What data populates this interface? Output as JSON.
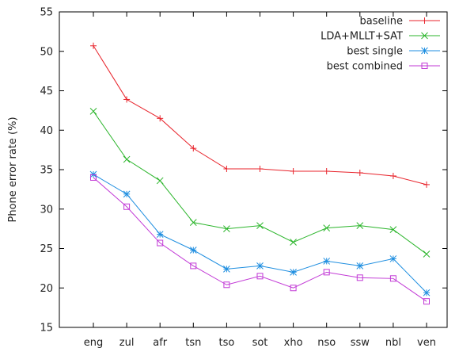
{
  "chart_data": {
    "type": "line",
    "categories": [
      "eng",
      "zul",
      "afr",
      "tsn",
      "tso",
      "sot",
      "xho",
      "nso",
      "ssw",
      "nbl",
      "ven"
    ],
    "ylabel": "Phone error rate (%)",
    "xlabel": "",
    "ylim": [
      15,
      55
    ],
    "yticks": [
      15,
      20,
      25,
      30,
      35,
      40,
      45,
      50,
      55
    ],
    "grid": false,
    "legend_position": "top-right",
    "series": [
      {
        "name": "baseline",
        "marker": "plus",
        "color": "#e8232b",
        "values": [
          50.7,
          43.9,
          41.5,
          37.7,
          35.1,
          35.1,
          34.8,
          34.8,
          34.6,
          34.2,
          33.1
        ]
      },
      {
        "name": "LDA+MLLT+SAT",
        "marker": "cross",
        "color": "#2bb52b",
        "values": [
          42.4,
          36.3,
          33.6,
          28.3,
          27.5,
          27.9,
          25.8,
          27.6,
          27.9,
          27.4,
          24.3
        ]
      },
      {
        "name": "best single",
        "marker": "star",
        "color": "#1e8ee0",
        "values": [
          34.4,
          31.9,
          26.8,
          24.8,
          22.4,
          22.8,
          22.0,
          23.4,
          22.8,
          23.7,
          19.4
        ]
      },
      {
        "name": "best combined",
        "marker": "square",
        "color": "#c23ad6",
        "values": [
          34.0,
          30.3,
          25.7,
          22.8,
          20.4,
          21.5,
          20.0,
          22.0,
          21.3,
          21.2,
          18.3
        ]
      }
    ]
  }
}
